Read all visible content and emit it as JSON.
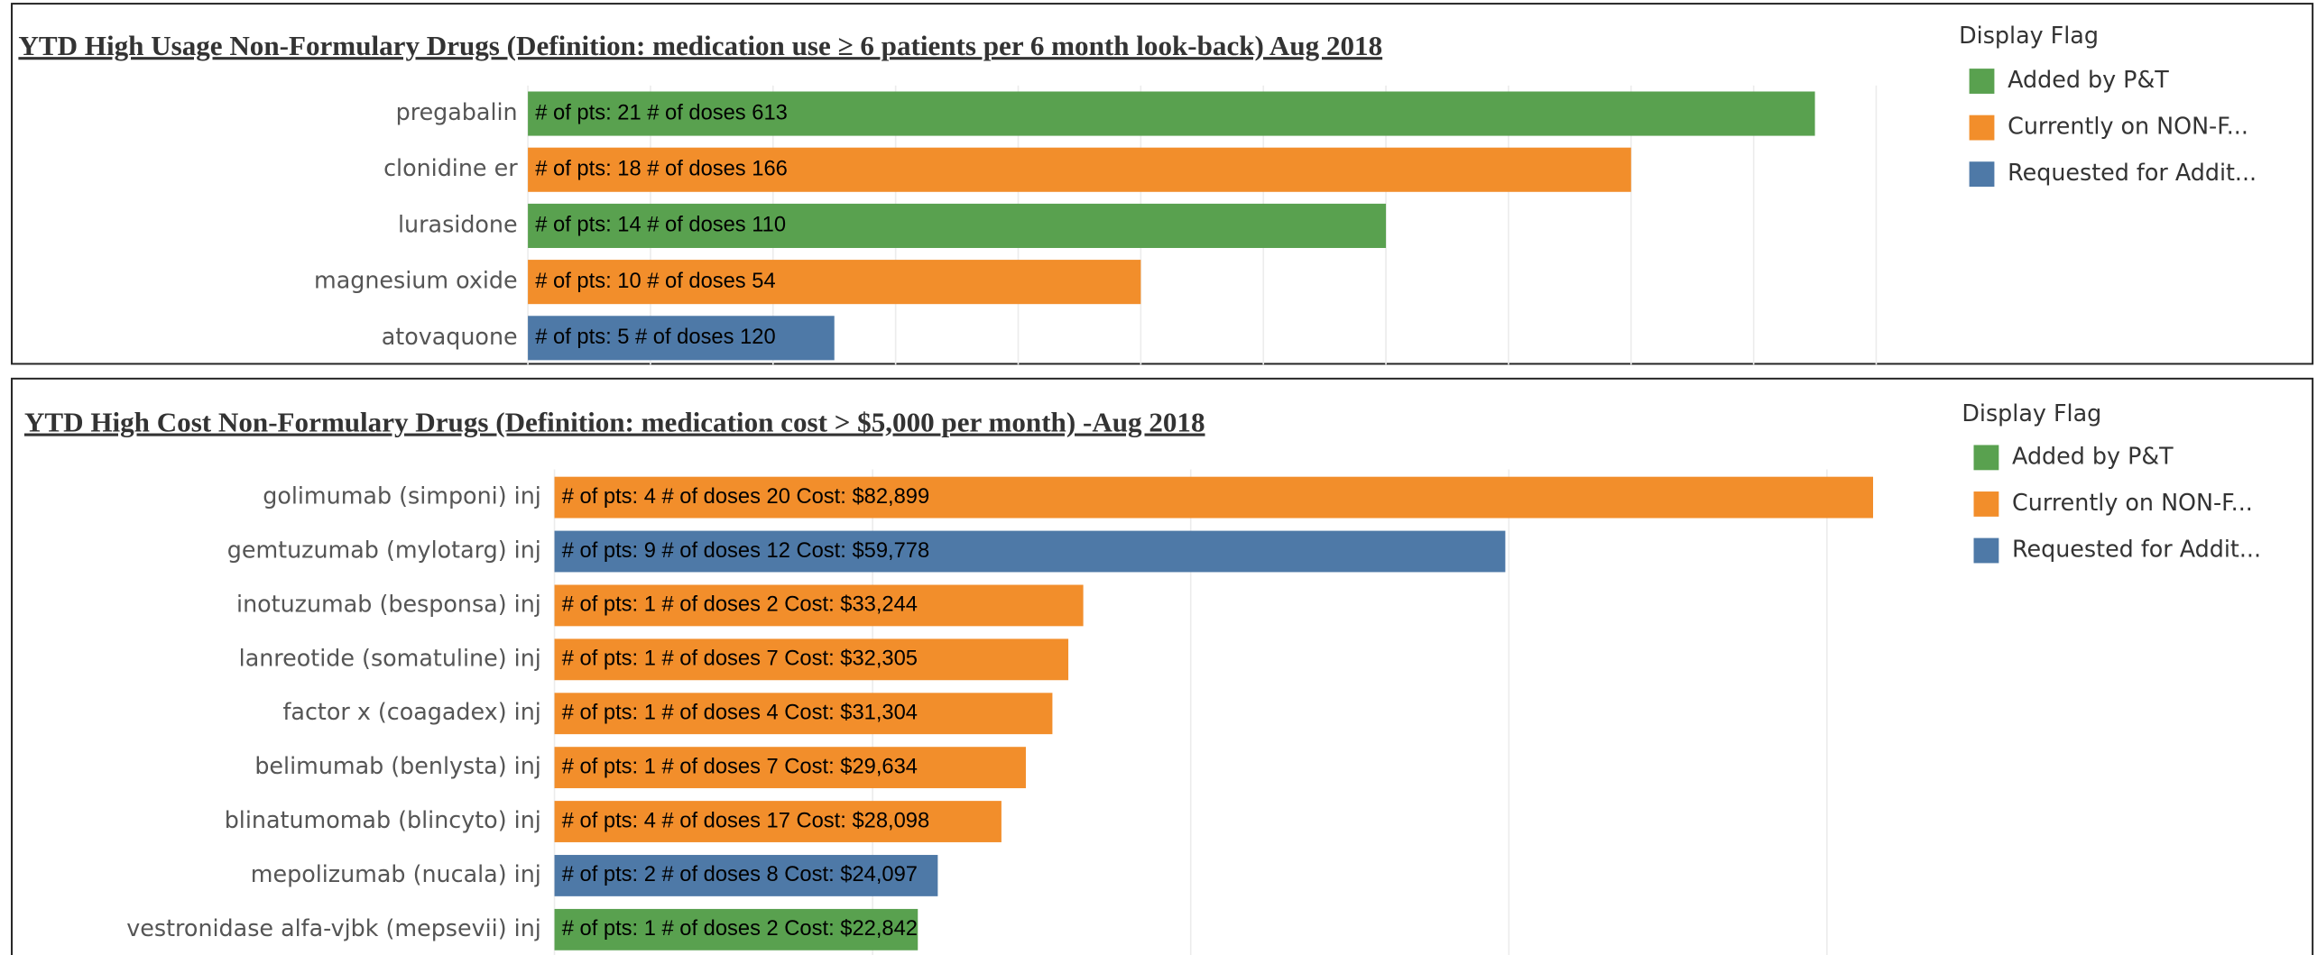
{
  "chart_data": [
    {
      "type": "bar",
      "orientation": "horizontal",
      "title": "YTD High Usage Non-Formulary Drugs (Definition: medication use ≥ 6 patients per 6 month look-back)  Aug 2018",
      "categories": [
        "pregabalin",
        "clonidine er",
        "lurasidone",
        "magnesium oxide",
        "atovaquone"
      ],
      "values": [
        21,
        18,
        14,
        10,
        5
      ],
      "value_labels": [
        "# of pts: 21   # of doses 613",
        "# of pts: 18   # of doses 166",
        "# of pts: 14   # of doses 110",
        "# of pts: 10   # of doses 54",
        "# of pts: 5   # of doses 120"
      ],
      "colors": [
        "#59a14f",
        "#f28e2b",
        "#59a14f",
        "#f28e2b",
        "#4e79a7"
      ],
      "xlim": [
        0,
        22
      ],
      "xticks": [
        0,
        2,
        4,
        6,
        8,
        10,
        12,
        14,
        16,
        18,
        20,
        22
      ],
      "grid": true,
      "legend": {
        "title": "Display Flag",
        "items": [
          {
            "name": "Added by P&T",
            "color": "#59a14f"
          },
          {
            "name": "Currently on NON-F...",
            "color": "#f28e2b"
          },
          {
            "name": "Requested for Addit...",
            "color": "#4e79a7"
          }
        ]
      }
    },
    {
      "type": "bar",
      "orientation": "horizontal",
      "title": "YTD High Cost Non-Formulary Drugs (Definition: medication cost > $5,000 per month)  -Aug 2018",
      "categories": [
        "golimumab (simponi) inj",
        "gemtuzumab (mylotarg) inj",
        "inotuzumab (besponsa) inj",
        "lanreotide (somatuline) inj",
        "factor x (coagadex) inj",
        "belimumab (benlysta) inj",
        "blinatumomab (blincyto) inj",
        "mepolizumab (nucala) inj",
        "vestronidase alfa-vjbk (mepsevii) inj"
      ],
      "values": [
        82899,
        59778,
        33244,
        32305,
        31304,
        29634,
        28098,
        24097,
        22842
      ],
      "value_labels": [
        "# of pts: 4   # of doses 20   Cost: $82,899",
        "# of pts: 9   # of doses 12   Cost: $59,778",
        "# of pts: 1   # of doses 2   Cost: $33,244",
        "# of pts: 1   # of doses 7   Cost: $32,305",
        "# of pts: 1   # of doses 4   Cost: $31,304",
        "# of pts: 1   # of doses 7   Cost: $29,634",
        "# of pts: 4   # of doses 17   Cost: $28,098",
        "# of pts: 2   # of doses 8   Cost: $24,097",
        "# of pts: 1   # of doses 2   Cost: $22,842"
      ],
      "colors": [
        "#f28e2b",
        "#4e79a7",
        "#f28e2b",
        "#f28e2b",
        "#f28e2b",
        "#f28e2b",
        "#f28e2b",
        "#4e79a7",
        "#59a14f"
      ],
      "xlim": [
        0,
        85000
      ],
      "xticks": [
        0,
        20000,
        40000,
        60000,
        80000
      ],
      "grid": true,
      "legend": {
        "title": "Display Flag",
        "items": [
          {
            "name": "Added by P&T",
            "color": "#59a14f"
          },
          {
            "name": "Currently on NON-F...",
            "color": "#f28e2b"
          },
          {
            "name": "Requested for Addit...",
            "color": "#4e79a7"
          }
        ]
      }
    }
  ]
}
